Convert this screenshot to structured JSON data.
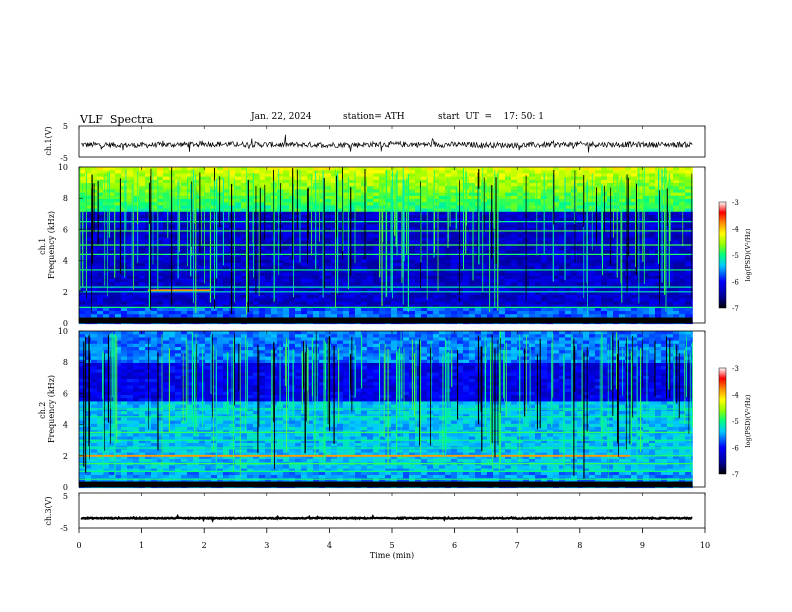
{
  "header": {
    "title": "VLF  Spectra",
    "date": "Jan. 22, 2024",
    "station": "station= ATH",
    "start": "start  UT  =    17: 50: 1"
  },
  "panels": {
    "ch1_voltage_label": "ch.1(V)",
    "ch1_freq_label": "ch.1\nFrequency (kHz)",
    "ch2_freq_label": "ch.2\nFrequency (kHz)",
    "ch3_voltage_label": "ch.3(V)",
    "colorbar_label": "log(PSD)(V²/Hz)",
    "colorbar_ticks": [
      "-3",
      "-4",
      "-5",
      "-6",
      "-7"
    ],
    "voltage_ticks": [
      "5",
      "-5"
    ],
    "freq_ticks": [
      "10",
      "8",
      "6",
      "4",
      "2",
      "0"
    ]
  },
  "chart_data": [
    {
      "type": "line",
      "name": "ch.1 waveform",
      "ylabel": "ch.1(V)",
      "ylim": [
        -5,
        5
      ],
      "xlim": [
        0,
        10
      ],
      "x": [
        0,
        1,
        2,
        3,
        4,
        5,
        6,
        7,
        8,
        9,
        9.8
      ],
      "y": [
        -1,
        -1.2,
        -0.8,
        -1,
        -1.1,
        -0.9,
        -1,
        -1.2,
        -0.9,
        -1,
        -1
      ]
    },
    {
      "type": "heatmap",
      "name": "ch.1 spectrogram",
      "ylabel": "Frequency (kHz)",
      "ylim": [
        0,
        10
      ],
      "xlim": [
        0,
        10
      ],
      "data_end_min": 9.8,
      "colorbar": {
        "label": "log(PSD)(V²/Hz)",
        "range": [
          -7,
          -3
        ]
      },
      "bands_khz": [
        0.3,
        1.0,
        2.0,
        2.3,
        3.4,
        4.4,
        5.0,
        5.9,
        6.5
      ],
      "highlight_band": {
        "freq_khz": 2.1,
        "x_range_min": [
          1.1,
          2.1
        ]
      }
    },
    {
      "type": "heatmap",
      "name": "ch.2 spectrogram",
      "ylabel": "Frequency (kHz)",
      "ylim": [
        0,
        10
      ],
      "xlim": [
        0,
        10
      ],
      "data_end_min": 9.8,
      "colorbar": {
        "label": "log(PSD)(V²/Hz)",
        "range": [
          -7,
          -3
        ]
      },
      "bands_khz": [
        0.5,
        1.0,
        1.5,
        2.0,
        2.5,
        3.0,
        3.5,
        4.5,
        5.0
      ],
      "highlight_band": {
        "freq_khz": 2.0,
        "x_range_min": [
          0,
          8.8
        ]
      }
    },
    {
      "type": "line",
      "name": "ch.3 waveform",
      "ylabel": "ch.3(V)",
      "ylim": [
        -5,
        5
      ],
      "xlim": [
        0,
        10
      ],
      "x": [
        0,
        9.8
      ],
      "y": [
        -2.2,
        -2.2
      ]
    }
  ],
  "xaxis": {
    "label": "Time  (min)",
    "ticks": [
      "0",
      "1",
      "2",
      "3",
      "4",
      "5",
      "6",
      "7",
      "8",
      "9",
      "10"
    ]
  }
}
